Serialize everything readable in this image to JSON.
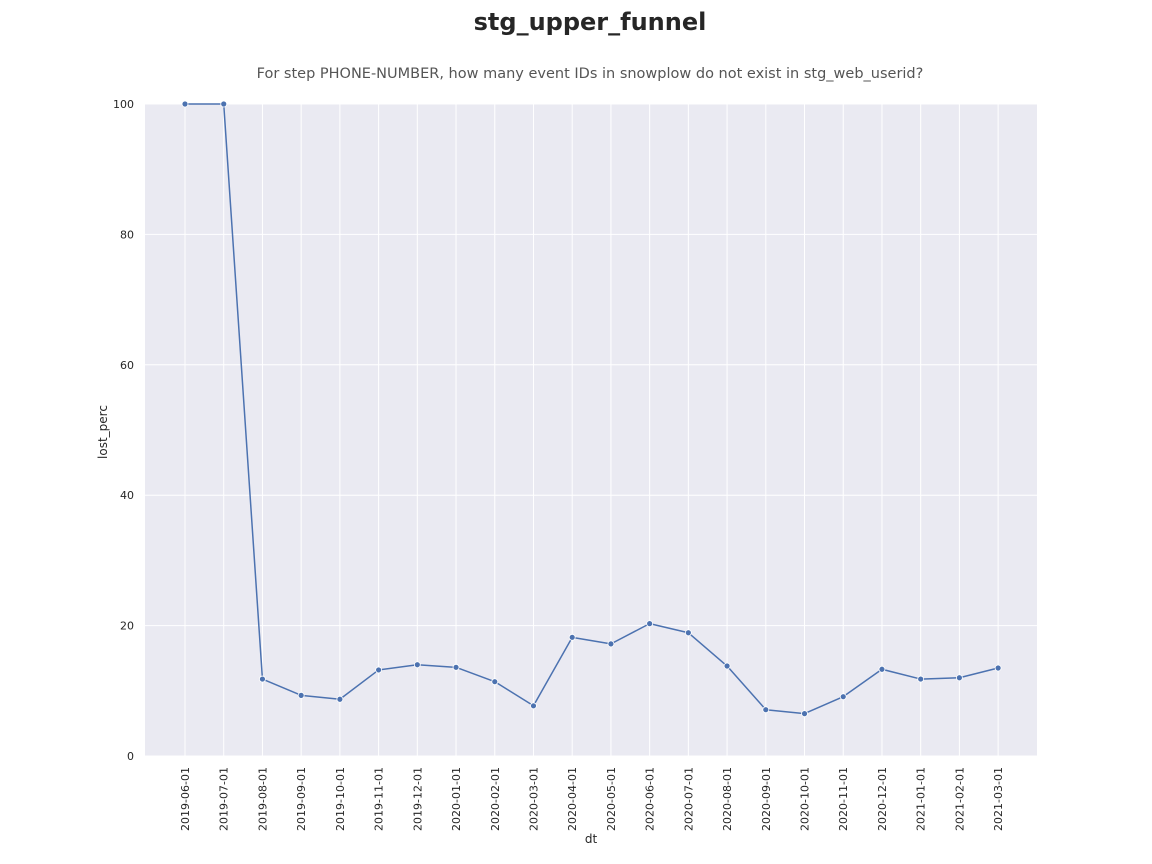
{
  "chart_data": {
    "type": "line",
    "title": "stg_upper_funnel",
    "subtitle": "For step PHONE-NUMBER, how many event IDs in snowplow do not exist in stg_web_userid?",
    "xlabel": "dt",
    "ylabel": "lost_perc",
    "ylim": [
      0,
      100
    ],
    "yticks": [
      0,
      20,
      40,
      60,
      80,
      100
    ],
    "grid": true,
    "legend": "none",
    "colors": {
      "line": "#4c72b0",
      "plot_background": "#eaeaf2",
      "grid": "#ffffff",
      "text": "#262626"
    },
    "categories": [
      "2019-06-01",
      "2019-07-01",
      "2019-08-01",
      "2019-09-01",
      "2019-10-01",
      "2019-11-01",
      "2019-12-01",
      "2020-01-01",
      "2020-02-01",
      "2020-03-01",
      "2020-04-01",
      "2020-05-01",
      "2020-06-01",
      "2020-07-01",
      "2020-08-01",
      "2020-09-01",
      "2020-10-01",
      "2020-11-01",
      "2020-12-01",
      "2021-01-01",
      "2021-02-01",
      "2021-03-01"
    ],
    "series": [
      {
        "values": [
          100,
          100,
          11.8,
          9.3,
          8.7,
          13.2,
          14.0,
          13.6,
          11.4,
          7.7,
          18.2,
          17.2,
          20.3,
          18.9,
          13.8,
          7.1,
          6.5,
          9.1,
          13.3,
          11.8,
          12.0,
          13.5
        ]
      }
    ]
  }
}
